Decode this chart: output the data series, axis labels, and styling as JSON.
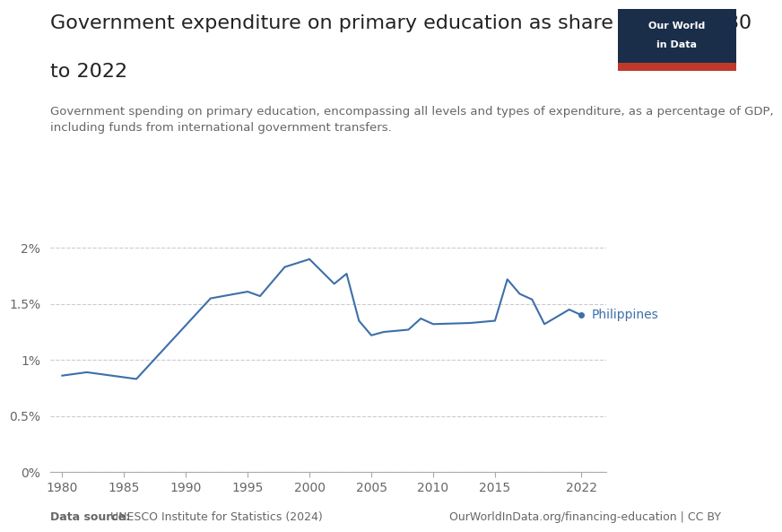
{
  "title_line1": "Government expenditure on primary education as share of GDP, 1980",
  "title_line2": "to 2022",
  "subtitle": "Government spending on primary education, encompassing all levels and types of expenditure, as a percentage of GDP,\nincluding funds from international government transfers.",
  "source_left_bold": "Data source:",
  "source_left_normal": " UNESCO Institute for Statistics (2024)",
  "source_right": "OurWorldInData.org/financing-education | CC BY",
  "label": "Philippines",
  "line_color": "#3d6fa8",
  "label_color": "#3d6fa8",
  "background_color": "#ffffff",
  "years": [
    1980,
    1982,
    1986,
    1992,
    1995,
    1996,
    1998,
    2000,
    2002,
    2003,
    2004,
    2005,
    2006,
    2008,
    2009,
    2010,
    2013,
    2015,
    2016,
    2017,
    2018,
    2019,
    2021,
    2022
  ],
  "values": [
    0.0086,
    0.0089,
    0.0083,
    0.0155,
    0.0161,
    0.0157,
    0.0183,
    0.019,
    0.0168,
    0.0177,
    0.0135,
    0.0122,
    0.0125,
    0.0127,
    0.0137,
    0.0132,
    0.0133,
    0.0135,
    0.0172,
    0.0159,
    0.0154,
    0.0132,
    0.0145,
    0.014
  ],
  "ylim": [
    0,
    0.025
  ],
  "yticks": [
    0,
    0.005,
    0.01,
    0.015,
    0.02
  ],
  "ytick_labels": [
    "0%",
    "0.5%",
    "1%",
    "1.5%",
    "2%"
  ],
  "xlim": [
    1979,
    2024
  ],
  "xticks": [
    1980,
    1985,
    1990,
    1995,
    2000,
    2005,
    2010,
    2015,
    2022
  ],
  "title_fontsize": 16,
  "subtitle_fontsize": 9.5,
  "tick_fontsize": 10,
  "label_fontsize": 10,
  "source_fontsize": 9,
  "grid_color": "#cccccc",
  "spine_color": "#aaaaaa",
  "text_color_dark": "#222222",
  "text_color_gray": "#666666",
  "owid_logo_bg": "#1a2e4a",
  "owid_logo_red": "#c0392b"
}
